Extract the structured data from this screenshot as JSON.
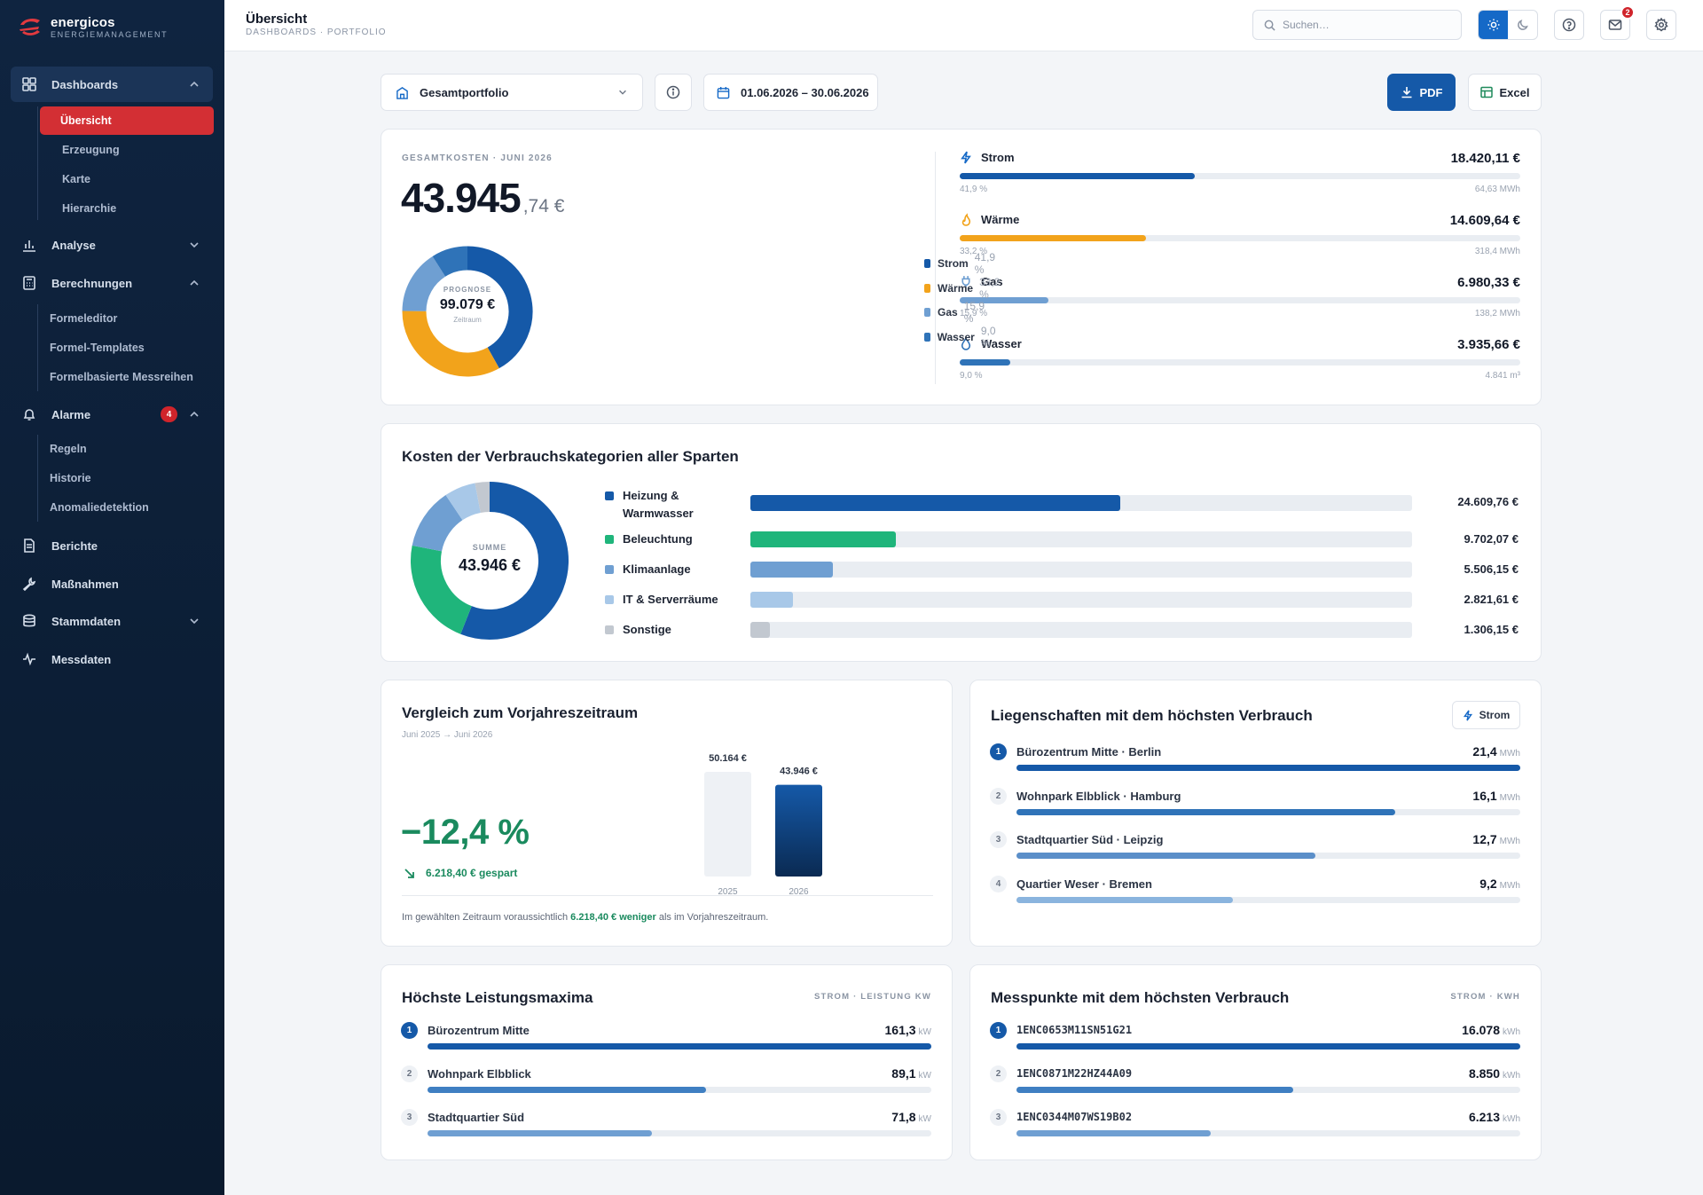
{
  "brand": {
    "name": "energicos",
    "sub": "ENERGIEMANAGEMENT"
  },
  "nav": {
    "dashboards": {
      "label": "Dashboards",
      "items": [
        "Übersicht",
        "Erzeugung",
        "Karte",
        "Hierarchie"
      ]
    },
    "analyse": {
      "label": "Analyse"
    },
    "berechnungen": {
      "label": "Berechnungen",
      "items": [
        "Formeleditor",
        "Formel-Templates",
        "Formelbasierte Messreihen"
      ]
    },
    "alarme": {
      "label": "Alarme",
      "badge": "4",
      "items": [
        "Regeln",
        "Historie",
        "Anomaliedetektion"
      ]
    },
    "berichte": {
      "label": "Berichte"
    },
    "massnahmen": {
      "label": "Maßnahmen"
    },
    "stammdaten": {
      "label": "Stammdaten"
    },
    "messdaten": {
      "label": "Messdaten"
    }
  },
  "header": {
    "title": "Übersicht",
    "breadcrumb": "DASHBOARDS · PORTFOLIO",
    "search_placeholder": "Suchen…",
    "mail_badge": "2"
  },
  "toolbar": {
    "portfolio": "Gesamtportfolio",
    "date_range": "01.06.2026 – 30.06.2026",
    "pdf": "PDF",
    "excel": "Excel"
  },
  "total": {
    "caption": "GESAMTKOSTEN · JUNI 2026",
    "amount_main": "43.945",
    "amount_dec": ",74 €",
    "forecast_caption": "PROGNOSE",
    "forecast_value": "99.079 €",
    "forecast_sub": "Zeitraum",
    "donut": [
      {
        "name": "Strom",
        "pct_label": "41,9 %",
        "value": 41.9,
        "color": "#1559a8"
      },
      {
        "name": "Wärme",
        "pct_label": "33,2 %",
        "value": 33.2,
        "color": "#f2a31b"
      },
      {
        "name": "Gas",
        "pct_label": "15,9 %",
        "value": 15.9,
        "color": "#6f9fd2"
      },
      {
        "name": "Wasser",
        "pct_label": "9,0 %",
        "value": 9.0,
        "color": "#2f73b8"
      }
    ]
  },
  "utilities": [
    {
      "name": "Strom",
      "value": "18.420,11 €",
      "pct": "41,9 %",
      "amount": "64,63 MWh",
      "fill": 0.419,
      "color": "#1559a8",
      "icon": "bolt-icon"
    },
    {
      "name": "Wärme",
      "value": "14.609,64 €",
      "pct": "33,2 %",
      "amount": "318,4 MWh",
      "fill": 0.332,
      "color": "#f2a31b",
      "icon": "flame-icon"
    },
    {
      "name": "Gas",
      "value": "6.980,33 €",
      "pct": "15,9 %",
      "amount": "138,2 MWh",
      "fill": 0.159,
      "color": "#6f9fd2",
      "icon": "plug-icon"
    },
    {
      "name": "Wasser",
      "value": "3.935,66 €",
      "pct": "9,0 %",
      "amount": "4.841 m³",
      "fill": 0.09,
      "color": "#2f73b8",
      "icon": "drop-icon"
    }
  ],
  "categories": {
    "title": "Kosten der Verbrauchskategorien aller Sparten",
    "sum_caption": "SUMME",
    "sum_value": "43.946 €",
    "items": [
      {
        "name": "Heizung & Warmwasser",
        "value_label": "24.609,76 €",
        "value": 24609.76,
        "color": "#1559a8"
      },
      {
        "name": "Beleuchtung",
        "value_label": "9.702,07 €",
        "value": 9702.07,
        "color": "#1fb57b"
      },
      {
        "name": "Klimaanlage",
        "value_label": "5.506,15 €",
        "value": 5506.15,
        "color": "#6f9fd2"
      },
      {
        "name": "IT & Serverräume",
        "value_label": "2.821,61 €",
        "value": 2821.61,
        "color": "#a8c8e8"
      },
      {
        "name": "Sonstige",
        "value_label": "1.306,15 €",
        "value": 1306.15,
        "color": "#c2c8d0"
      }
    ]
  },
  "comparison": {
    "title": "Vergleich zum Vorjahreszeitraum",
    "period": "Juni 2025 → Juni 2026",
    "change": "−12,4 %",
    "saved": "6.218,40 € gespart",
    "bars": [
      {
        "year": "2025",
        "label": "50.164 €",
        "value": 50164
      },
      {
        "year": "2026",
        "label": "43.946 €",
        "value": 43946
      }
    ],
    "note_pre": "Im gewählten Zeitraum voraussichtlich ",
    "note_highlight": "6.218,40 € weniger",
    "note_post": " als im Vorjahreszeitraum."
  },
  "properties": {
    "title": "Liegenschaften mit dem höchsten Verbrauch",
    "filter": "Strom",
    "unit": "MWh",
    "items": [
      {
        "rank": "1",
        "name": "Bürozentrum Mitte · Berlin",
        "value": "21,4",
        "fill": 1.0
      },
      {
        "rank": "2",
        "name": "Wohnpark Elbblick · Hamburg",
        "value": "16,1",
        "fill": 0.752
      },
      {
        "rank": "3",
        "name": "Stadtquartier Süd · Leipzig",
        "value": "12,7",
        "fill": 0.593
      },
      {
        "rank": "4",
        "name": "Quartier Weser · Bremen",
        "value": "9,2",
        "fill": 0.43
      }
    ]
  },
  "peaks": {
    "title": "Höchste Leistungsmaxima",
    "caption": "STROM · LEISTUNG KW",
    "unit": "kW",
    "items": [
      {
        "rank": "1",
        "name": "Bürozentrum Mitte",
        "value": "161,3",
        "fill": 1.0
      },
      {
        "rank": "2",
        "name": "Wohnpark Elbblick",
        "value": "89,1",
        "fill": 0.552
      },
      {
        "rank": "3",
        "name": "Stadtquartier Süd",
        "value": "71,8",
        "fill": 0.445
      }
    ]
  },
  "meters": {
    "title": "Messpunkte mit dem höchsten Verbrauch",
    "caption": "STROM · KWH",
    "unit": "kWh",
    "items": [
      {
        "rank": "1",
        "name": "1ENC0653M11SN51G21",
        "value": "16.078",
        "fill": 1.0
      },
      {
        "rank": "2",
        "name": "1ENC0871M22HZ44A09",
        "value": "8.850",
        "fill": 0.55
      },
      {
        "rank": "3",
        "name": "1ENC0344M07WS19B02",
        "value": "6.213",
        "fill": 0.386
      }
    ]
  }
}
